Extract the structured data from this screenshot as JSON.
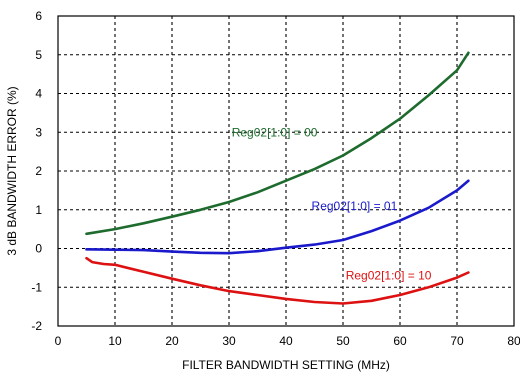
{
  "chart_data": {
    "type": "line",
    "xlabel": "FILTER BANDWIDTH SETTING (MHz)",
    "ylabel": "3 dB BANDWIDTH ERROR (%)",
    "xlim": [
      0,
      80
    ],
    "ylim": [
      -2,
      6
    ],
    "xticks": [
      0,
      10,
      20,
      30,
      40,
      50,
      60,
      70,
      80
    ],
    "yticks": [
      -2,
      -1,
      0,
      1,
      2,
      3,
      4,
      5,
      6
    ],
    "grid": true,
    "series": [
      {
        "name": "Reg02[1:0] = 00",
        "color": "#1e6b2e",
        "x": [
          5,
          10,
          15,
          20,
          25,
          30,
          35,
          40,
          45,
          50,
          55,
          60,
          65,
          70,
          72
        ],
        "y": [
          0.38,
          0.5,
          0.65,
          0.82,
          1.0,
          1.2,
          1.45,
          1.75,
          2.05,
          2.4,
          2.85,
          3.35,
          3.95,
          4.6,
          5.05
        ]
      },
      {
        "name": "Reg02[1:0] = 01",
        "color": "#1a1acc",
        "x": [
          5,
          10,
          15,
          20,
          25,
          30,
          35,
          40,
          45,
          50,
          55,
          60,
          65,
          70,
          72
        ],
        "y": [
          -0.02,
          -0.03,
          -0.04,
          -0.08,
          -0.11,
          -0.12,
          -0.07,
          0.02,
          0.1,
          0.22,
          0.45,
          0.72,
          1.05,
          1.5,
          1.75
        ]
      },
      {
        "name": "Reg02[1:0] = 10",
        "color": "#dd1111",
        "x": [
          5,
          6,
          8,
          10,
          15,
          20,
          25,
          30,
          35,
          40,
          45,
          50,
          55,
          60,
          65,
          70,
          72
        ],
        "y": [
          -0.25,
          -0.35,
          -0.4,
          -0.42,
          -0.6,
          -0.78,
          -0.95,
          -1.1,
          -1.2,
          -1.3,
          -1.38,
          -1.42,
          -1.35,
          -1.2,
          -1.0,
          -0.75,
          -0.62
        ]
      }
    ],
    "annotations": [
      {
        "text": "Reg02[1:0] = 00",
        "x": 38,
        "y": 3.0,
        "color": "#1e6b2e"
      },
      {
        "text": "Reg02[1:0] = 01",
        "x": 52,
        "y": 1.1,
        "color": "#1a1acc"
      },
      {
        "text": "Reg02[1:0] = 10",
        "x": 58,
        "y": -0.7,
        "color": "#dd1111"
      }
    ]
  }
}
